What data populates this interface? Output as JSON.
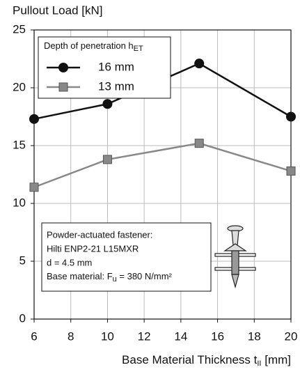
{
  "chart_data": {
    "type": "line",
    "ylabel": "Pullout Load [kN]",
    "xlabel": {
      "main": "Base Material Thickness t",
      "sub": "II",
      "unit": " [mm]"
    },
    "xlim": [
      6,
      20
    ],
    "xticks": [
      6,
      8,
      10,
      12,
      14,
      16,
      18,
      20
    ],
    "ylim": [
      0,
      25
    ],
    "yticks": [
      0,
      5,
      10,
      15,
      20,
      25
    ],
    "grid": true,
    "legend": "upper left",
    "legend_title": {
      "main": "Depth of penetration h",
      "sub": "ET"
    },
    "x": [
      6,
      10,
      15,
      20
    ],
    "series": [
      {
        "name": "16 mm",
        "color": "#111111",
        "marker": "circle",
        "values": [
          17.3,
          18.6,
          22.1,
          17.5
        ]
      },
      {
        "name": "13 mm",
        "color": "#888888",
        "marker": "square",
        "values": [
          11.4,
          13.8,
          15.2,
          12.8
        ]
      }
    ],
    "annotation": {
      "lines": [
        "Powder-actuated fastener:",
        "Hilti ENP2-21 L15MXR",
        "d = 4.5 mm"
      ],
      "last": {
        "main": "Base material: F",
        "sub": "u",
        "rest": " = 380 N/mm²"
      }
    }
  }
}
